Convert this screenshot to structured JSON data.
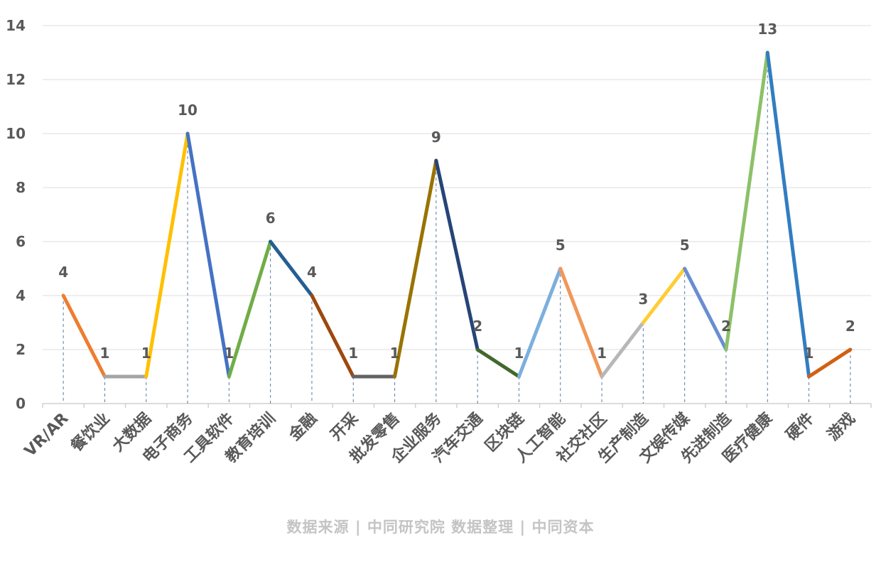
{
  "source_note": "数据来源 | 中同研究院  数据整理 | 中同资本",
  "chart_data": {
    "type": "line",
    "categories": [
      "VR/AR",
      "餐饮业",
      "大数据",
      "电子商务",
      "工具软件",
      "教育培训",
      "金融",
      "开采",
      "批发零售",
      "企业服务",
      "汽车交通",
      "区块链",
      "人工智能",
      "社交社区",
      "生产制造",
      "文娱传媒",
      "先进制造",
      "医疗健康",
      "硬件",
      "游戏"
    ],
    "values": [
      4,
      1,
      1,
      10,
      1,
      6,
      4,
      1,
      1,
      9,
      2,
      1,
      5,
      1,
      3,
      5,
      2,
      13,
      1,
      2
    ],
    "data_labels": [
      "4",
      "1",
      "1",
      "10",
      "1",
      "6",
      "4",
      "1",
      "1",
      "9",
      "2",
      "1",
      "5",
      "1",
      "3",
      "5",
      "2",
      "13",
      "1",
      "2"
    ],
    "segment_colors": [
      "#ED7D31",
      "#A5A5A5",
      "#FFC000",
      "#4472C4",
      "#70AD47",
      "#255E91",
      "#9E480E",
      "#636363",
      "#997300",
      "#264478",
      "#43682B",
      "#7CAFDD",
      "#F1975A",
      "#B7B7B7",
      "#FFCD33",
      "#698ED0",
      "#8CC168",
      "#327DC2",
      "#D26012"
    ],
    "ylim": [
      0,
      14
    ],
    "y_ticks": [
      "0",
      "2",
      "4",
      "6",
      "8",
      "10",
      "12",
      "14"
    ],
    "y_tick_values": [
      0,
      2,
      4,
      6,
      8,
      10,
      12,
      14
    ],
    "grid": true,
    "drop_lines": true,
    "title": "",
    "xlabel": "",
    "ylabel": ""
  }
}
